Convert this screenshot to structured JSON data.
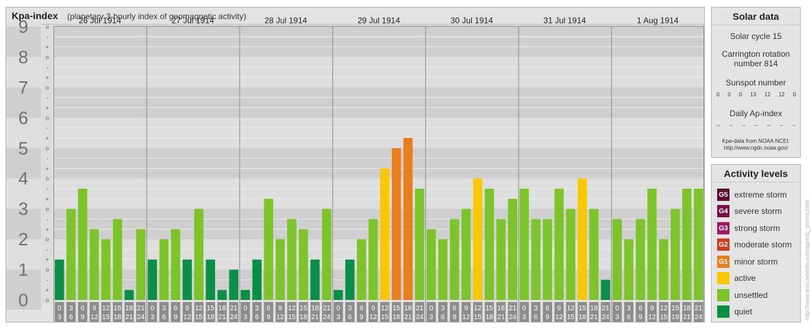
{
  "header": {
    "title": "Kpa-index",
    "subtitle": "(planetary 3-hourly index of geomagnetic activity)"
  },
  "chart_data": {
    "type": "bar",
    "title": "Kpa-index",
    "subtitle": "(planetary 3-hourly index of geomagnetic activity)",
    "ylim": [
      0,
      9
    ],
    "y_ticks": [
      "0",
      "1",
      "2",
      "3",
      "4",
      "5",
      "6",
      "7",
      "8",
      "9"
    ],
    "sub_ticks": [
      "+",
      "o",
      "-"
    ],
    "days": [
      "26 Jul 1914",
      "27 Jul 1914",
      "28 Jul 1914",
      "29 Jul 1914",
      "30 Jul 1914",
      "31 Jul 1914",
      "1 Aug 1914"
    ],
    "interval_start": [
      "0",
      "3",
      "6",
      "9",
      "12",
      "15",
      "18",
      "21"
    ],
    "interval_end": [
      "3",
      "6",
      "9",
      "12",
      "15",
      "18",
      "21",
      "24"
    ],
    "series": [
      {
        "values": [
          1.333,
          3.0,
          3.667,
          2.333,
          2.0,
          2.667,
          0.333,
          2.333,
          1.333,
          2.0,
          2.333,
          1.333,
          3.0,
          1.333,
          0.333,
          1.0,
          0.333,
          1.333,
          3.333,
          2.0,
          2.667,
          2.333,
          1.333,
          3.0,
          0.333,
          1.333,
          2.0,
          2.667,
          4.333,
          5.0,
          5.333,
          3.667,
          2.333,
          2.0,
          2.667,
          3.0,
          4.0,
          3.667,
          2.667,
          3.333,
          3.667,
          2.667,
          2.667,
          3.667,
          3.0,
          4.0,
          3.0,
          0.667,
          2.667,
          2.0,
          2.667,
          3.667,
          2.0,
          3.0,
          3.667,
          3.667
        ]
      }
    ],
    "grid": true,
    "thresholds": {
      "active": 4,
      "minor_storm": 5,
      "moderate_storm": 6,
      "strong_storm": 7,
      "severe_storm": 8,
      "extreme_storm": 9
    }
  },
  "solar": {
    "title": "Solar data",
    "cycle": "Solar cycle 15",
    "carrington_line1": "Carrington rotation",
    "carrington_line2": "number 814",
    "sunspot_title": "Sunspot number",
    "sunspot_values": [
      "0",
      "0",
      "0",
      "13",
      "12",
      "12",
      "0"
    ],
    "ap_title": "Daily Ap-index",
    "ap_values": [
      "--",
      "--",
      "--",
      "--",
      "--",
      "--",
      "--"
    ],
    "source_line1": "Kpa-data from NOAA NCEI:",
    "source_line2": "http://www.ngdc.noaa.gov/"
  },
  "levels": {
    "title": "Activity levels",
    "items": [
      {
        "code": "G5",
        "label": "extreme storm",
        "color": "#5c0a2e"
      },
      {
        "code": "G4",
        "label": "severe storm",
        "color": "#7a1045"
      },
      {
        "code": "G3",
        "label": "strong storm",
        "color": "#a3175e"
      },
      {
        "code": "G2",
        "label": "moderate storm",
        "color": "#d23d1d"
      },
      {
        "code": "G1",
        "label": "minor storm",
        "color": "#e87e1c"
      },
      {
        "code": "",
        "label": "active",
        "color": "#fac800"
      },
      {
        "code": "",
        "label": "unsettled",
        "color": "#7dc42b"
      },
      {
        "code": "",
        "label": "quiet",
        "color": "#0a8f47"
      }
    ]
  },
  "colors": {
    "quiet": "#0a8f47",
    "unsettled": "#7dc42b",
    "active": "#fac800",
    "minor_storm": "#e87e1c",
    "moderate_storm": "#d23d1d",
    "strong_storm": "#a3175e",
    "severe_storm": "#7a1045",
    "extreme_storm": "#5c0a2e"
  },
  "watermark": "http://www.tesis.lebedev.ru/magnetic_storms.html"
}
